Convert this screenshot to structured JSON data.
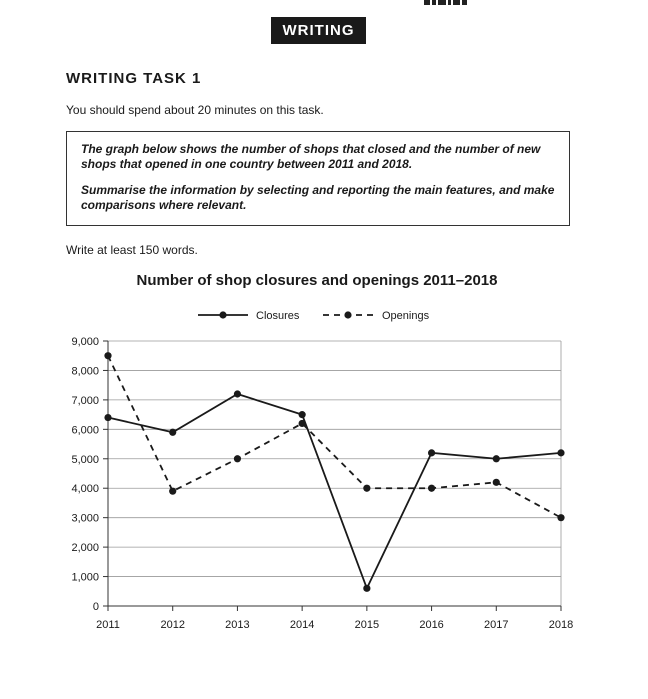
{
  "header": {
    "section_label": "WRITING"
  },
  "task": {
    "title": "WRITING TASK 1",
    "time_note": "You should spend about 20 minutes on this task.",
    "prompt_line1": "The graph below shows the number of shops that closed and the number of new shops that opened in one country between 2011 and 2018.",
    "prompt_line2": "Summarise the information by selecting and reporting the main features, and make comparisons where relevant.",
    "word_note": "Write at least 150 words."
  },
  "chart_data": {
    "type": "line",
    "title": "Number of shop closures and openings 2011–2018",
    "xlabel": "",
    "ylabel": "",
    "x": [
      "2011",
      "2012",
      "2013",
      "2014",
      "2015",
      "2016",
      "2017",
      "2018"
    ],
    "ylim": [
      0,
      9000
    ],
    "yticks": [
      0,
      1000,
      2000,
      3000,
      4000,
      5000,
      6000,
      7000,
      8000,
      9000
    ],
    "ytick_labels": [
      "0",
      "1,000",
      "2,000",
      "3,000",
      "4,000",
      "5,000",
      "6,000",
      "7,000",
      "8,000",
      "9,000"
    ],
    "grid": true,
    "legend_position": "top-center",
    "series": [
      {
        "name": "Closures",
        "style": "solid",
        "color": "#1a1a1a",
        "values": [
          6400,
          5900,
          7200,
          6500,
          600,
          5200,
          5000,
          5200
        ]
      },
      {
        "name": "Openings",
        "style": "dashed",
        "color": "#1a1a1a",
        "values": [
          8500,
          3900,
          5000,
          6200,
          4000,
          4000,
          4200,
          3000
        ]
      }
    ]
  }
}
